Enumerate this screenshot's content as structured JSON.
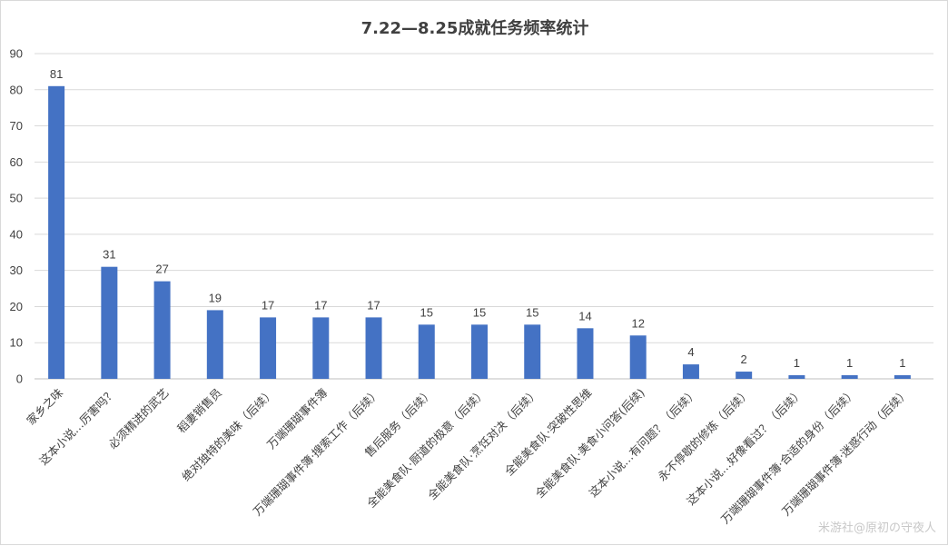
{
  "chart_data": {
    "type": "bar",
    "title": "7.22—8.25成就任务频率统计",
    "categories": [
      "家乡之味",
      "这本小说…厉害吗？",
      "必须精进的武艺",
      "稻妻销售员",
      "绝对独特的美味（后续）",
      "万端珊瑚事件簿",
      "万端珊瑚事件簿·搜索工作（后续）",
      "售后服务（后续）",
      "全能美食队·厨道的极意（后续）",
      "全能美食队·烹饪对决（后续）",
      "全能美食队·突破性思维",
      "全能美食队·美食小问答(后续)",
      "这本小说…有问题？（后续）",
      "永不停歇的修炼（后续）",
      "这本小说…好像看过？（后续）",
      "万端珊瑚事件簿·合适的身份（后续）",
      "万端珊瑚事件簿·迷惑行动（后续）"
    ],
    "values": [
      81,
      31,
      27,
      19,
      17,
      17,
      17,
      15,
      15,
      15,
      14,
      12,
      4,
      2,
      1,
      1,
      1
    ],
    "ylim": [
      0,
      90
    ],
    "yticks": [
      0,
      10,
      20,
      30,
      40,
      50,
      60,
      70,
      80,
      90
    ],
    "grid": true,
    "bar_color": "#4472c4",
    "xlabel": "",
    "ylabel": ""
  },
  "watermark": "米游社@原初の守夜人"
}
